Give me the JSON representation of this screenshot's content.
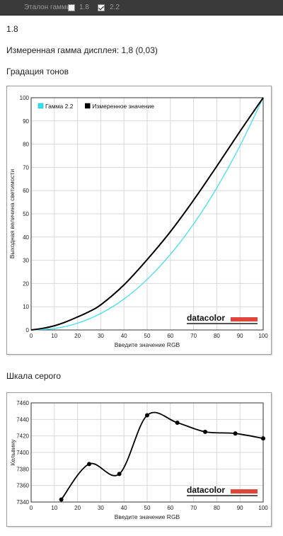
{
  "toolbar": {
    "reference_label": "Эталон гаммы:",
    "options": [
      {
        "label": "1.8",
        "checked": false
      },
      {
        "label": "2.2",
        "checked": true
      }
    ]
  },
  "measured_value": "1.8",
  "gamma_text": "Измеренная гамма дисплея: 1,8 (0,03)",
  "tone_heading": "Градация тонов",
  "gray_heading": "Шкала серого",
  "logo_text": "datacolor",
  "colors": {
    "gamma22": "#33e0f0",
    "measured": "#000000",
    "logo_bar": "#e0453a",
    "grid": "#d8d8d8"
  },
  "chart_data": [
    {
      "type": "line",
      "xlabel": "Введите значение RGB",
      "ylabel": "Выходная величина светимости",
      "xlim": [
        0,
        100
      ],
      "ylim": [
        0,
        100
      ],
      "xticks": [
        0,
        10,
        20,
        30,
        40,
        50,
        60,
        70,
        80,
        90,
        100
      ],
      "yticks": [
        0,
        10,
        20,
        30,
        40,
        50,
        60,
        70,
        80,
        90,
        100
      ],
      "grid": true,
      "legend": "top-left",
      "series": [
        {
          "name": "Гамма 2.2",
          "x": [
            0,
            10,
            20,
            30,
            40,
            50,
            60,
            70,
            80,
            90,
            100
          ],
          "values": [
            0,
            0.6,
            2.9,
            7.1,
            13.3,
            21.8,
            32.5,
            45.6,
            61.2,
            79.3,
            100
          ]
        },
        {
          "name": "Измеренное значение",
          "x": [
            0,
            5,
            10,
            15,
            20,
            25,
            30,
            40,
            50,
            60,
            70,
            80,
            90,
            100
          ],
          "values": [
            0,
            0.7,
            1.8,
            3.5,
            5.6,
            7.9,
            10.8,
            19.4,
            30.3,
            42.3,
            55.9,
            70.5,
            85.5,
            100
          ]
        }
      ]
    },
    {
      "type": "line",
      "xlabel": "Введите значение RGB",
      "ylabel": "Кельвину",
      "xlim": [
        0,
        100
      ],
      "ylim": [
        7340,
        7460
      ],
      "xticks": [
        0,
        10,
        20,
        30,
        40,
        50,
        60,
        70,
        80,
        90,
        100
      ],
      "yticks": [
        7340,
        7360,
        7380,
        7400,
        7420,
        7440,
        7460
      ],
      "grid": true,
      "series": [
        {
          "name": "",
          "x": [
            13,
            25,
            38,
            50,
            63,
            75,
            88,
            100
          ],
          "values": [
            7343,
            7386,
            7374,
            7445,
            7436,
            7425,
            7423,
            7417
          ]
        }
      ]
    }
  ]
}
